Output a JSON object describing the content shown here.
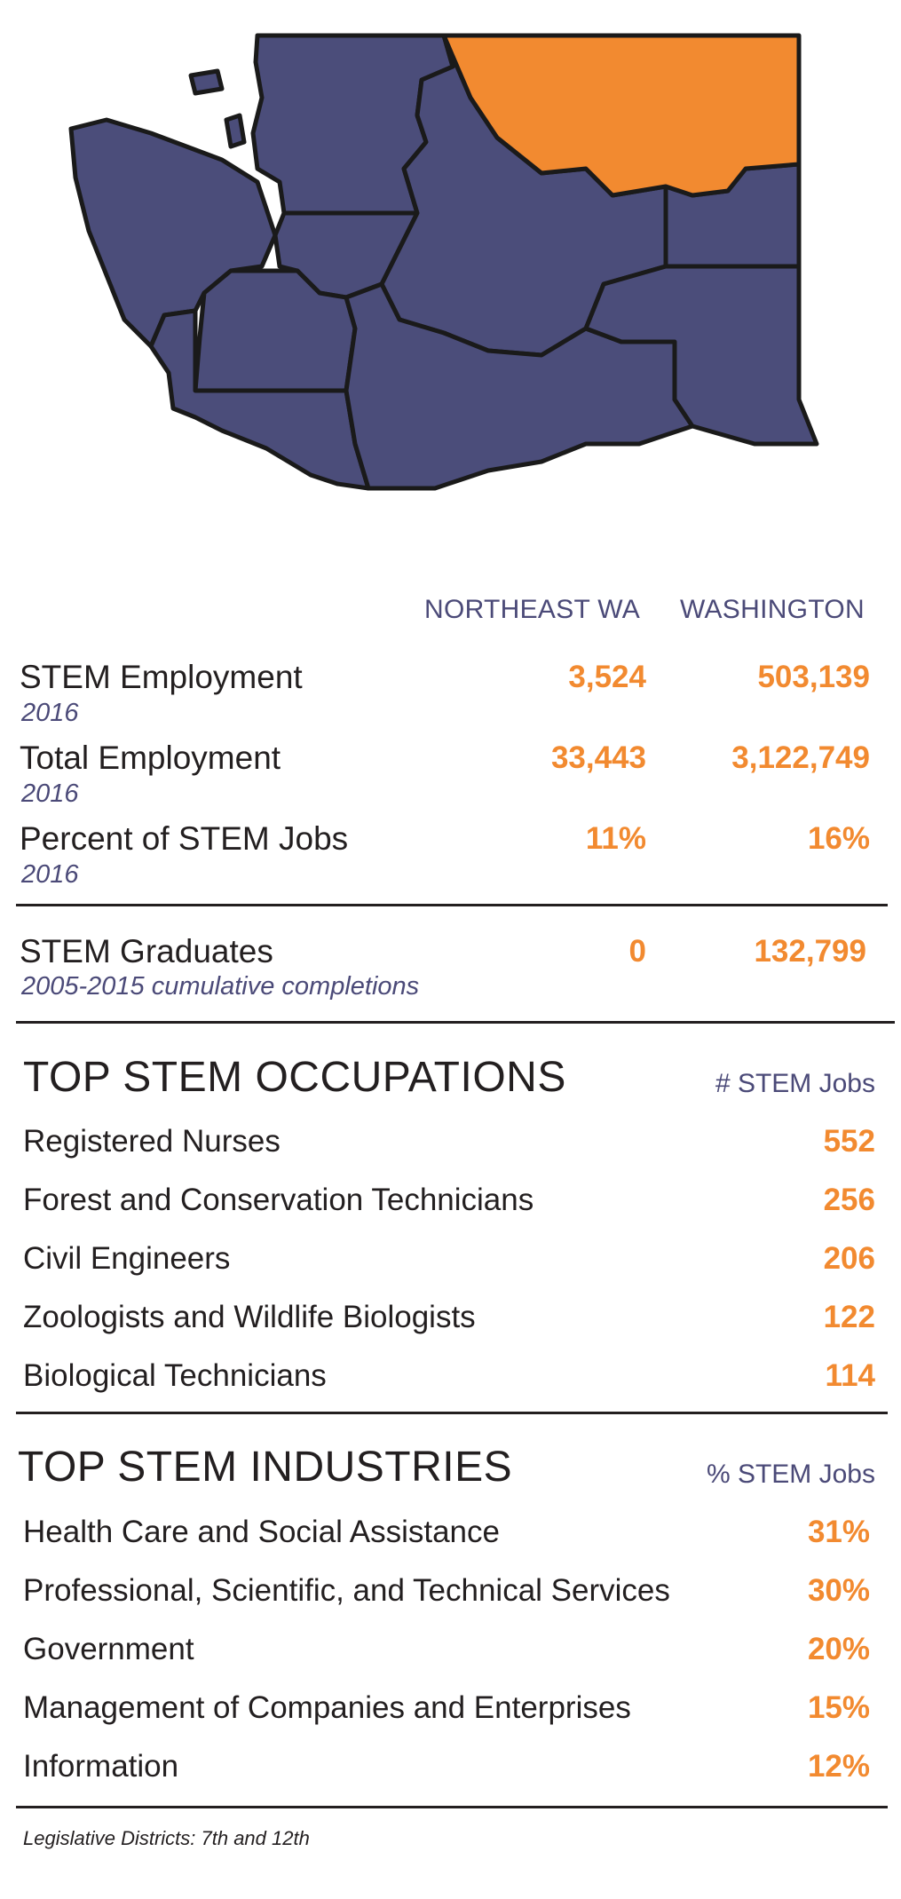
{
  "colors": {
    "region_default": "#4b4d7a",
    "region_highlight": "#f28a30",
    "outline": "#1a1a1a",
    "accent_value": "#f28a30",
    "accent_label": "#4b4a78"
  },
  "map": {
    "highlighted_region": "Northeast WA"
  },
  "stats": {
    "col_region": "NORTHEAST WA",
    "col_state": "WASHINGTON",
    "rows": [
      {
        "label": "STEM Employment",
        "sub": "2016",
        "region": "3,524",
        "state": "503,139"
      },
      {
        "label": "Total Employment",
        "sub": "2016",
        "region": "33,443",
        "state": "3,122,749"
      },
      {
        "label": "Percent of STEM Jobs",
        "sub": "2016",
        "region": "11%",
        "state": "16%"
      },
      {
        "label": "STEM Graduates",
        "sub": "2005-2015 cumulative completions",
        "region": "0",
        "state": "132,799"
      }
    ]
  },
  "occupations": {
    "title": "TOP STEM OCCUPATIONS",
    "metric": "# STEM Jobs",
    "items": [
      {
        "label": "Registered Nurses",
        "value": "552"
      },
      {
        "label": "Forest and Conservation Technicians",
        "value": "256"
      },
      {
        "label": "Civil Engineers",
        "value": "206"
      },
      {
        "label": "Zoologists and Wildlife Biologists",
        "value": "122"
      },
      {
        "label": "Biological Technicians",
        "value": "114"
      }
    ]
  },
  "industries": {
    "title": "TOP STEM INDUSTRIES",
    "metric": "% STEM Jobs",
    "items": [
      {
        "label": "Health Care and Social Assistance",
        "value": "31%"
      },
      {
        "label": "Professional, Scientific, and Technical Services",
        "value": "30%"
      },
      {
        "label": "Government",
        "value": "20%"
      },
      {
        "label": "Management of Companies and Enterprises",
        "value": "15%"
      },
      {
        "label": "Information",
        "value": "12%"
      }
    ]
  },
  "footnote": "Legislative Districts: 7th and 12th"
}
